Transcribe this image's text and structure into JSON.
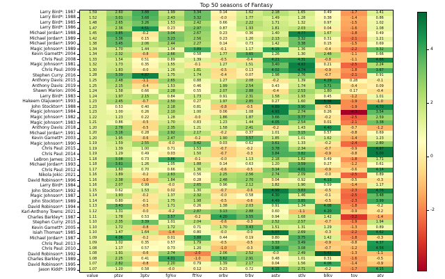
{
  "title": "Top 50 seasons of Fantasy",
  "chart_data": {
    "type": "heatmap",
    "title": "Top 50 seasons of Fantasy",
    "columns": [
      "value",
      "ptsv",
      "3ptv",
      "fg%v",
      "ft%v",
      "orbv",
      "trbv",
      "astv",
      "stlv",
      "blkv",
      "tov",
      "atv"
    ],
    "row_labels": [
      "Larry Bird*: 1987",
      "Larry Bird*: 1988",
      "Larry Bird*: 1985",
      "Larry Bird*: 1986",
      "Michael Jordan*: 1988",
      "Michael Jordan*: 1989",
      "Michael Jordan*: 1990",
      "Magic Johnson*: 1989",
      "Kevin Garnett*: 2004",
      "Chris Paul: 2008",
      "Magic Johnson*: 1981",
      "Chris Paul: 2009",
      "Stephen Curry: 2016",
      "Anthony Davis: 2015",
      "Anthony Davis: 2019",
      "Shawn Marion: 2006",
      "Larry Bird*: 1983",
      "Hakeem Olajuwon*: 1993",
      "John Stockton*: 1988",
      "Magic Johnson*: 1984",
      "Magic Johnson*: 1982",
      "Magic Johnson*: 1983",
      "Anthony Davis: 2018",
      "Michael Jordan*: 1991",
      "Kevin Garnett*: 2003",
      "Magic Johnson*: 1990",
      "Chris Paul: 2015",
      "Chris Paul: 2014",
      "LeBron James: 2013",
      "Michael Jordan*: 1993",
      "Chris Paul: 2012",
      "Nikola Jokic: 2021",
      "David Robinson*: 1996",
      "Larry Bird*: 1984",
      "John Stockton*: 1992",
      "Magic Johnson*: 1987",
      "John Stockton*: 1989",
      "David Robinson*: 1994",
      "Karl-Anthony Towns: 2021",
      "Charles Barkley*: 1987",
      "Stephen Curry: 2015",
      "Kevin Garnett*: 2005",
      "Isiah Thomas*: 1985",
      "Michael Jordan*: 1987",
      "Chris Paul: 2013",
      "Chris Paul: 2010",
      "David Robinson*: 1992",
      "Charles Barkley*: 1989",
      "David Robinson*: 1995",
      "Jason Kidd*: 1999"
    ],
    "values": [
      [
        "1.59",
        "2.60",
        "3.88",
        "1.99",
        "3.34",
        "0.14",
        "1.62",
        "2.18",
        "1.65",
        "0.49",
        "-1.7",
        "1.41"
      ],
      [
        "1.52",
        "3.01",
        "3.68",
        "2.43",
        "3.32",
        "-0.0",
        "1.77",
        "1.49",
        "1.28",
        "0.38",
        "-1.4",
        "0.86"
      ],
      [
        "1.48",
        "2.65",
        "3.26",
        "1.53",
        "2.42",
        "0.66",
        "2.22",
        "1.71",
        "1.32",
        "0.97",
        "-1.5",
        "1.02"
      ],
      [
        "1.47",
        "2.36",
        "4.51",
        "0.23",
        "2.97",
        "0.87",
        "1.93",
        "1.81",
        "2.03",
        "0.04",
        "-1.6",
        "1.08"
      ],
      [
        "1.45",
        "3.85",
        "-0.2",
        "3.04",
        "2.67",
        "0.23",
        "0.36",
        "1.40",
        "4.77",
        "1.67",
        "-1.8",
        "0.49"
      ],
      [
        "1.42",
        "3.36",
        "0.15",
        "3.23",
        "2.56",
        "0.23",
        "1.20",
        "2.13",
        "3.32",
        "0.31",
        "-2.1",
        "1.21"
      ],
      [
        "1.38",
        "3.45",
        "2.06",
        "2.44",
        "2.27",
        "0.14",
        "0.73",
        "1.42",
        "3.38",
        "0.15",
        "-1.5",
        "0.69"
      ],
      [
        "1.34",
        "1.70",
        "1.44",
        "1.04",
        "3.89",
        "-0.1",
        "1.17",
        "4.15",
        "1.36",
        "-0.4",
        "-2.2",
        "3.32"
      ],
      [
        "1.34",
        "2.32",
        "-0.8",
        "2.66",
        "0.58",
        "1.77",
        "3.65",
        "1.26",
        "1.30",
        "2.48",
        "-1.1",
        "0.66"
      ],
      [
        "1.33",
        "1.54",
        "0.51",
        "0.89",
        "1.39",
        "-0.5",
        "-0.4",
        "4.21",
        "4.31",
        "-0.8",
        "-1.1",
        "4.66"
      ],
      [
        "1.32",
        "1.73",
        "0.35",
        "1.55",
        "-0.1",
        "1.27",
        "1.51",
        "3.40",
        "4.93",
        "0.21",
        "-2.5",
        "2.24"
      ],
      [
        "1.30",
        "1.83",
        "-0.0",
        "1.26",
        "1.81",
        "-0.5",
        "0.13",
        "4.02",
        "4.74",
        "-0.9",
        "-1.8",
        "3.87"
      ],
      [
        "1.28",
        "3.39",
        "4.87",
        "1.75",
        "1.74",
        "-0.4",
        "0.07",
        "1.98",
        "2.76",
        "-0.7",
        "-2.1",
        "0.91"
      ],
      [
        "1.25",
        "2.48",
        "-1.1",
        "2.65",
        "0.88",
        "1.27",
        "2.08",
        "-0.2",
        "1.39",
        "4.29",
        "0.28",
        "-0.1"
      ],
      [
        "1.25",
        "2.15",
        "-0.4",
        "1.53",
        "0.46",
        "1.99",
        "2.54",
        "0.43",
        "1.74",
        "3.71",
        "-0.4",
        "0.09"
      ],
      [
        "1.24",
        "1.58",
        "0.66",
        "2.28",
        "0.55",
        "2.07",
        "2.88",
        "-0.4",
        "2.53",
        "1.80",
        "0.17",
        "-0.4"
      ],
      [
        "1.24",
        "1.97",
        "2.15",
        "0.84",
        "1.73",
        "0.91",
        "2.31",
        "1.58",
        "1.93",
        "0.45",
        "-1.2",
        "1.01"
      ],
      [
        "1.23",
        "2.45",
        "-0.7",
        "2.50",
        "0.27",
        "1.97",
        "2.85",
        "0.27",
        "1.60",
        "5.36",
        "-1.9",
        "-1.0"
      ],
      [
        "1.23",
        "0.53",
        "0.40",
        "2.18",
        "0.81",
        "-0.8",
        "-0.5",
        "4.89",
        "3.90",
        "-0.5",
        "-1.9",
        "4.70"
      ],
      [
        "1.23",
        "1.00",
        "0.26",
        "2.10",
        "1.00",
        "0.06",
        "1.08",
        "4.93",
        "2.74",
        "0.26",
        "-4.3",
        "3.54"
      ],
      [
        "1.22",
        "1.23",
        "0.22",
        "1.28",
        "-0.0",
        "1.86",
        "1.87",
        "3.66",
        "3.77",
        "-0.2",
        "-2.5",
        "2.59"
      ],
      [
        "1.21",
        "0.86",
        "-0.5",
        "1.70",
        "0.83",
        "1.23",
        "1.44",
        "4.05",
        "2.54",
        "0.01",
        "-2.1",
        "3.38"
      ],
      [
        "1.20",
        "2.78",
        "-0.5",
        "2.35",
        "1.21",
        "1.58",
        "2.41",
        "-0.2",
        "1.43",
        "4.40",
        "-0.7",
        "-1.2"
      ],
      [
        "1.20",
        "3.16",
        "0.28",
        "2.92",
        "2.17",
        "-0.2",
        "0.37",
        "1.01",
        "3.15",
        "0.57",
        "-0.8",
        "0.69"
      ],
      [
        "1.20",
        "1.95",
        "-0.6",
        "2.47",
        "-0.2",
        "1.90",
        "3.57",
        "1.85",
        "1.01",
        "1.62",
        "-1.4",
        "1.23"
      ],
      [
        "1.19",
        "1.59",
        "2.55",
        "-0.0",
        "3.42",
        "0.03",
        "0.62",
        "3.61",
        "1.33",
        "-0.2",
        "-2.4",
        "2.80"
      ],
      [
        "1.19",
        "1.39",
        "1.00",
        "0.71",
        "1.53",
        "-0.7",
        "-0.2",
        "3.78",
        "2.34",
        "-0.7",
        "-0.9",
        "4.97"
      ],
      [
        "1.19",
        "1.29",
        "0.49",
        "0.03",
        "1.50",
        "-0.7",
        "-0.3",
        "3.84",
        "3.82",
        "-0.9",
        "-0.8",
        "5.00"
      ],
      [
        "1.18",
        "3.08",
        "0.73",
        "3.86",
        "-0.1",
        "-0.0",
        "1.13",
        "2.18",
        "1.82",
        "0.49",
        "-1.8",
        "1.71"
      ],
      [
        "1.18",
        "3.61",
        "1.26",
        "1.05",
        "1.88",
        "0.14",
        "0.63",
        "1.20",
        "3.59",
        "0.27",
        "-1.2",
        "0.61"
      ],
      [
        "1.17",
        "1.60",
        "0.70",
        "0.66",
        "1.36",
        "-0.6",
        "-0.5",
        "3.14",
        "4.01",
        "-0.9",
        "-0.6",
        "4.14"
      ],
      [
        "1.16",
        "1.89",
        "-0.2",
        "2.63",
        "0.56",
        "2.25",
        "2.56",
        "2.74",
        "2.09",
        "-0.0",
        "-2.5",
        "0.89"
      ],
      [
        "1.16",
        "2.38",
        "-1.0",
        "1.84",
        "0.28",
        "2.48",
        "2.70",
        "0.04",
        "0.92",
        "4.13",
        "-0.5",
        "-0.3"
      ],
      [
        "1.16",
        "2.07",
        "0.99",
        "-0.0",
        "2.65",
        "0.96",
        "2.12",
        "1.82",
        "1.90",
        "0.59",
        "-1.4",
        "1.17"
      ],
      [
        "1.15",
        "0.62",
        "1.53",
        "0.02",
        "1.30",
        "-0.7",
        "-0.6",
        "4.99",
        "3.83",
        "-0.5",
        "-2.3",
        "4.76"
      ],
      [
        "1.14",
        "1.93",
        "-0.2",
        "1.37",
        "2.32",
        "-0.0",
        "0.58",
        "4.30",
        "1.46",
        "-0.1",
        "-2.5",
        "3.48"
      ],
      [
        "1.14",
        "0.80",
        "-0.1",
        "1.75",
        "1.98",
        "-0.5",
        "-0.6",
        "4.49",
        "3.85",
        "-0.5",
        "-2.3",
        "3.99"
      ],
      [
        "1.13",
        "3.43",
        "-0.5",
        "1.71",
        "0.26",
        "1.38",
        "2.03",
        "0.91",
        "1.34",
        "4.08",
        "-1.8",
        "-0.2"
      ],
      [
        "1.12",
        "1.31",
        "-0.0",
        "-0.2",
        "2.87",
        "3.13",
        "2.88",
        "0.60",
        "-1.1",
        "4.20",
        "-0.9",
        "-0.2"
      ],
      [
        "1.11",
        "1.78",
        "0.53",
        "3.57",
        "-0.2",
        "4.20",
        "3.55",
        "0.94",
        "1.68",
        "1.42",
        "-3.2",
        "-1.4"
      ],
      [
        "1.10",
        "2.35",
        "3.39",
        "1.01",
        "2.04",
        "-0.6",
        "-0.3",
        "2.52",
        "2.57",
        "-0.7",
        "-1.9",
        "1.94"
      ],
      [
        "1.10",
        "1.72",
        "-0.8",
        "1.72",
        "0.71",
        "1.70",
        "3.43",
        "1.51",
        "1.31",
        "1.29",
        "-1.3",
        "0.89"
      ],
      [
        "1.10",
        "1.47",
        "1.64",
        "-1.4",
        "0.80",
        "-0.0",
        "-0.0",
        "5.07",
        "2.69",
        "-0.3",
        "-2.2",
        "4.62"
      ],
      [
        "1.09",
        "4.06",
        "-0.2",
        "0.01",
        "3.88",
        "0.44",
        "0.19",
        "0.80",
        "3.75",
        "1.42",
        "-1.8",
        "-0.3"
      ],
      [
        "1.09",
        "1.02",
        "0.35",
        "0.57",
        "1.79",
        "-0.5",
        "-0.5",
        "3.33",
        "3.49",
        "-0.9",
        "-0.8",
        "4.37"
      ],
      [
        "1.08",
        "1.17",
        "0.57",
        "0.73",
        "1.20",
        "-1.0",
        "-0.3",
        "3.98",
        "3.08",
        "-0.7",
        "-1.2",
        "4.56"
      ],
      [
        "1.08",
        "1.91",
        "-0.6",
        "2.74",
        "-2.0",
        "2.06",
        "2.52",
        "-0.0",
        "2.49",
        "5.41",
        "-1.3",
        "-1.1"
      ],
      [
        "1.08",
        "2.25",
        "0.41",
        "4.01",
        "-1.0",
        "3.62",
        "2.91",
        "0.48",
        "1.01",
        "0.31",
        "-1.6",
        "-0.5"
      ],
      [
        "1.07",
        "2.82",
        "-0.8",
        "2.20",
        "0.79",
        "1.39",
        "2.17",
        "0.04",
        "1.56",
        "4.06",
        "-1.4",
        "-0.9"
      ],
      [
        "1.07",
        "1.20",
        "0.58",
        "-0.0",
        "0.12",
        "0.23",
        "0.72",
        "4.15",
        "2.71",
        "-0.2",
        "-1.7",
        "4.15"
      ]
    ],
    "colorbar": {
      "ticks": [
        4,
        2,
        0,
        -2
      ],
      "tick_labels": [
        "4",
        "2",
        "0",
        "-2"
      ],
      "vmin": -4.3,
      "vmax": 5.41
    },
    "colormap": {
      "name": "RdYlGn",
      "anchors": [
        "#a50026",
        "#d73027",
        "#f46d43",
        "#fdae61",
        "#fee08b",
        "#ffffbf",
        "#d9ef8b",
        "#a6d96a",
        "#66bd63",
        "#1a9850",
        "#006837"
      ]
    },
    "layout": {
      "grid_on": false,
      "legend_position": "right-colorbar",
      "annotated": true
    }
  }
}
